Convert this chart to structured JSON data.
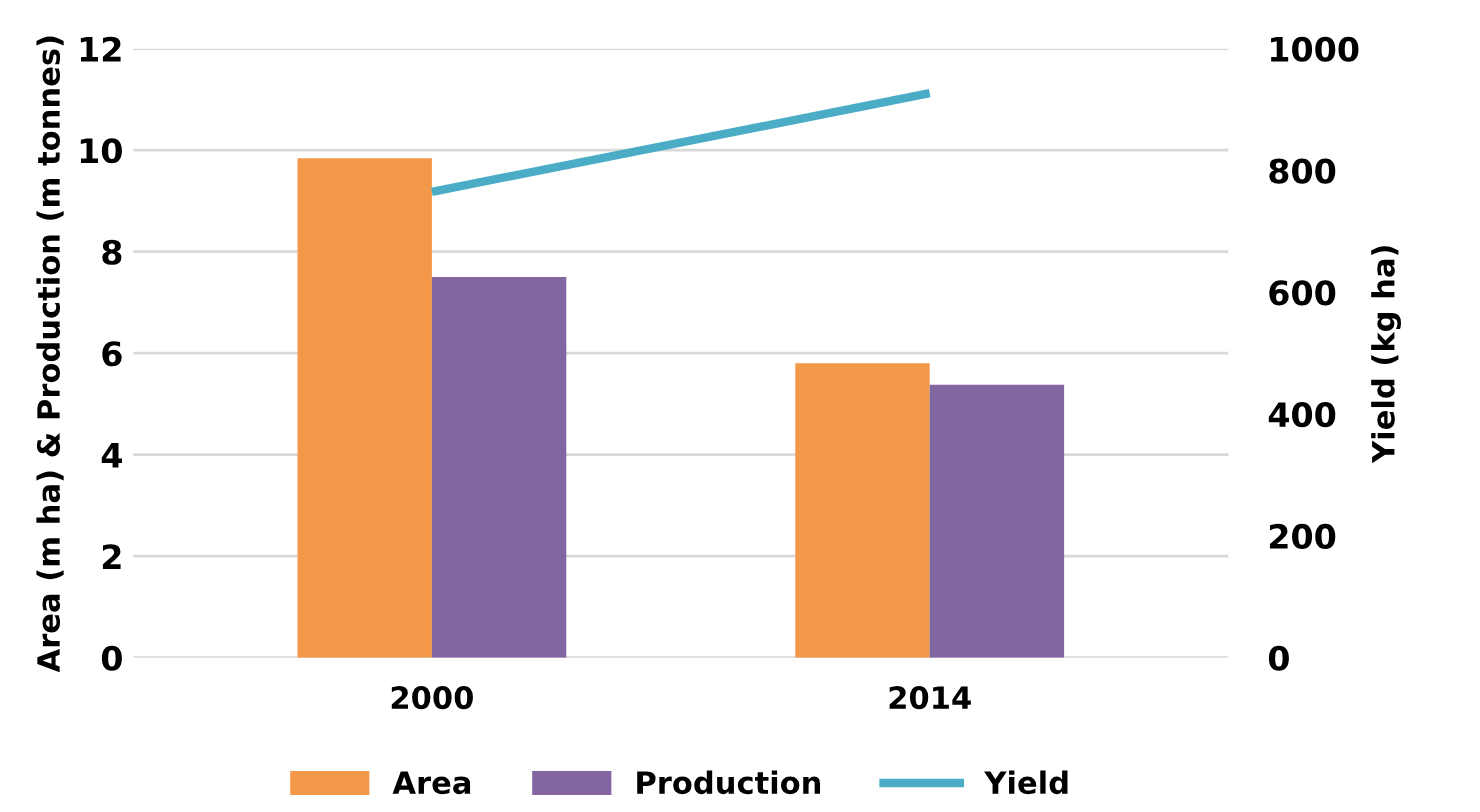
{
  "chart_data": {
    "type": "bar",
    "categories": [
      "2000",
      "2014"
    ],
    "series": [
      {
        "name": "Area",
        "color": "#f39849",
        "values": [
          9.84,
          5.8
        ]
      },
      {
        "name": "Production",
        "color": "#8266a2",
        "values": [
          7.5,
          5.38
        ]
      },
      {
        "name": "Yield",
        "type": "line",
        "axis": "y2",
        "color": "#4bacc6",
        "values": [
          765,
          927
        ]
      }
    ],
    "ylabel": "Area (m ha) & Production (m tonnes)",
    "y2label": "Yield (kg ha)",
    "ylim": [
      0,
      12
    ],
    "yticks": [
      0,
      2,
      4,
      6,
      8,
      10,
      12
    ],
    "y2lim": [
      0,
      1000
    ],
    "y2ticks": [
      0,
      200,
      400,
      600,
      800,
      1000
    ],
    "grid": "y",
    "legend": "bottom"
  }
}
